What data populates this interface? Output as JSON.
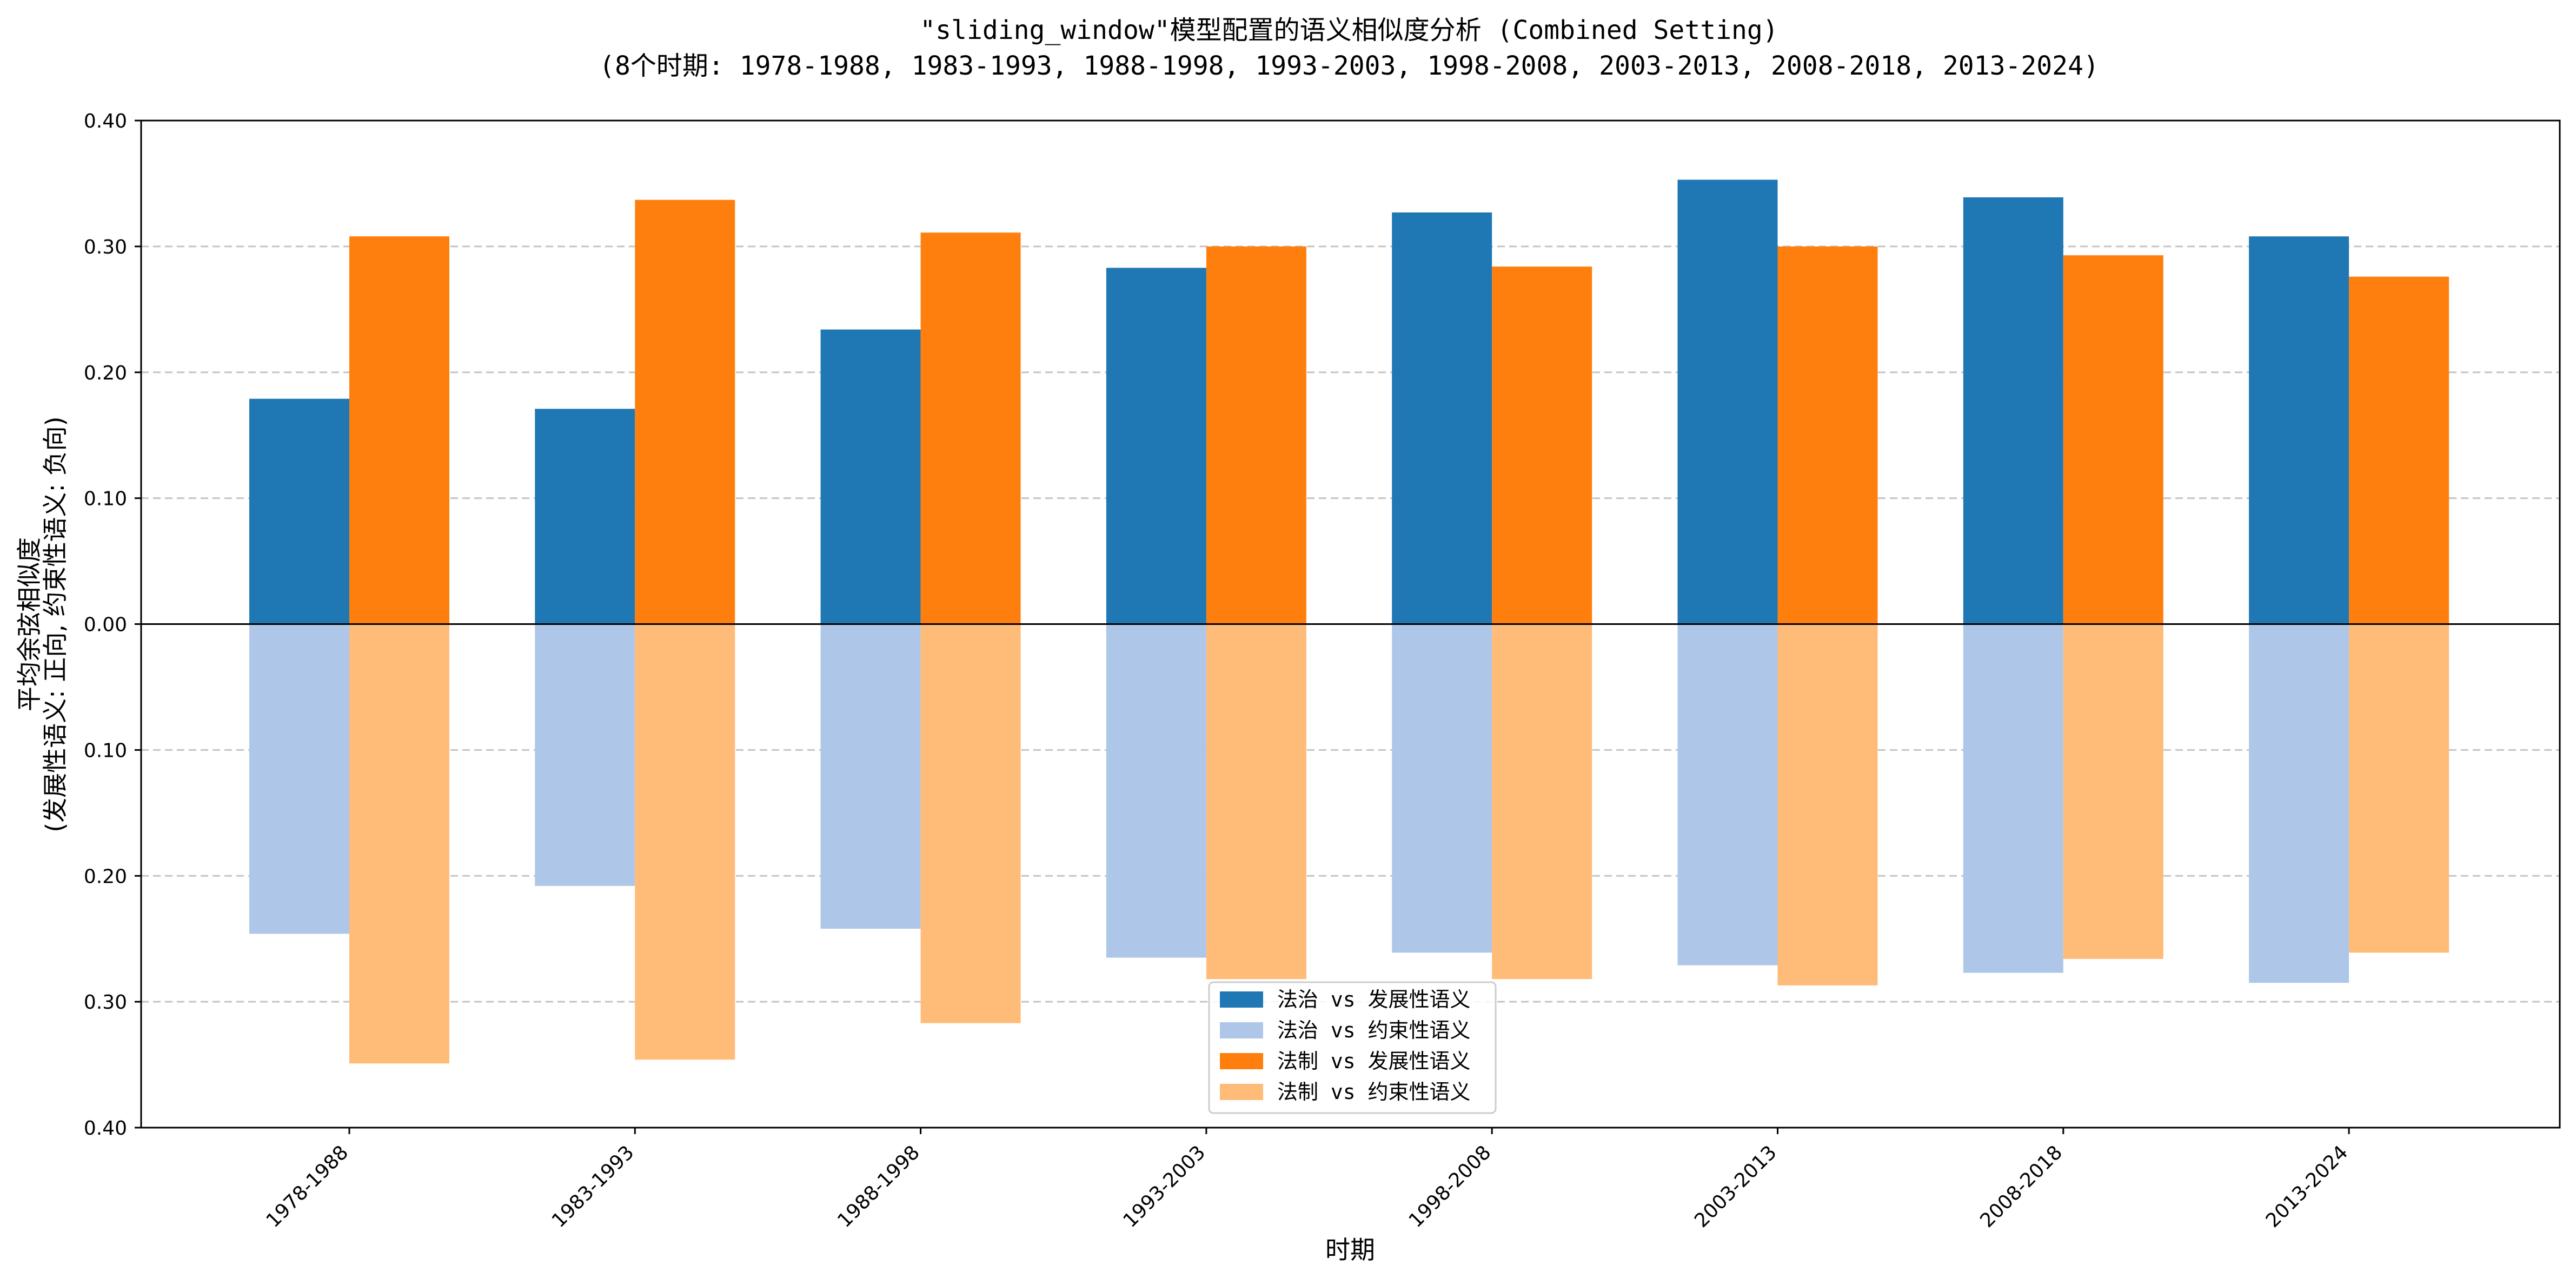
{
  "chart_data": {
    "type": "bar",
    "title": "\"sliding_window\"模型配置的语义相似度分析 (Combined Setting)",
    "subtitle": "(8个时期: 1978-1988, 1983-1993, 1988-1998, 1993-2003, 1998-2008, 2003-2013, 2008-2018, 2013-2024)",
    "xlabel": "时期",
    "ylabel_line1": "平均余弦相似度",
    "ylabel_line2": "(发展性语义: 正向, 约束性语义: 负向)",
    "categories": [
      "1978-1988",
      "1983-1993",
      "1988-1998",
      "1993-2003",
      "1998-2008",
      "2003-2013",
      "2008-2018",
      "2013-2024"
    ],
    "ylim": [
      -0.4,
      0.4
    ],
    "yticks": [
      0.4,
      0.3,
      0.2,
      0.1,
      0.0,
      -0.1,
      -0.2,
      -0.3,
      -0.4
    ],
    "ytick_labels": [
      "0.40",
      "0.30",
      "0.20",
      "0.10",
      "0.00",
      "0.10",
      "0.20",
      "0.30",
      "0.40"
    ],
    "grid": "horizontal dashed",
    "legend_position": "bottom-center",
    "series": [
      {
        "name": "法治 vs 发展性语义",
        "color": "#1f77b4",
        "group": 0,
        "direction": "positive",
        "values": [
          0.179,
          0.171,
          0.234,
          0.283,
          0.327,
          0.353,
          0.339,
          0.308
        ]
      },
      {
        "name": "法治 vs 约束性语义",
        "color": "#aec7e8",
        "group": 0,
        "direction": "negative",
        "values": [
          0.246,
          0.208,
          0.242,
          0.265,
          0.261,
          0.271,
          0.277,
          0.285
        ]
      },
      {
        "name": "法制 vs 发展性语义",
        "color": "#ff7f0e",
        "group": 1,
        "direction": "positive",
        "values": [
          0.308,
          0.337,
          0.311,
          0.3,
          0.284,
          0.3,
          0.293,
          0.276
        ]
      },
      {
        "name": "法制 vs 约束性语义",
        "color": "#ffbb78",
        "group": 1,
        "direction": "negative",
        "values": [
          0.349,
          0.346,
          0.317,
          0.282,
          0.282,
          0.287,
          0.266,
          0.261
        ]
      }
    ]
  }
}
